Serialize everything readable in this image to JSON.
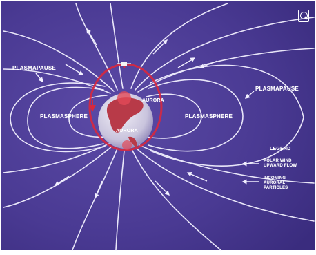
{
  "colors": {
    "background": "#4a3a93",
    "field_lines": "#f2f0ff",
    "aurora_oval": "#d8283e",
    "ocean": "#c9c4dd",
    "land": "#b83a48",
    "frame": "#ffffff"
  },
  "labels": {
    "plasmapause_left": "PLASMAPAUSE",
    "plasmapause_right": "PLASMAPAUSE",
    "plasmasphere_left": "PLASMASPHERE",
    "plasmasphere_right": "PLASMASPHERE",
    "aurora_top": "AURORA",
    "aurora_bottom": "AURORA"
  },
  "legend": {
    "title": "LEGEND",
    "polar_wind": [
      "POLAR WIND",
      "UPWARD FLOW"
    ],
    "incoming": [
      "INCOMING",
      "AURORAL",
      "PARTICLES"
    ]
  },
  "icons": {
    "logo": "emblem-icon",
    "satellite": "satellite-icon"
  }
}
